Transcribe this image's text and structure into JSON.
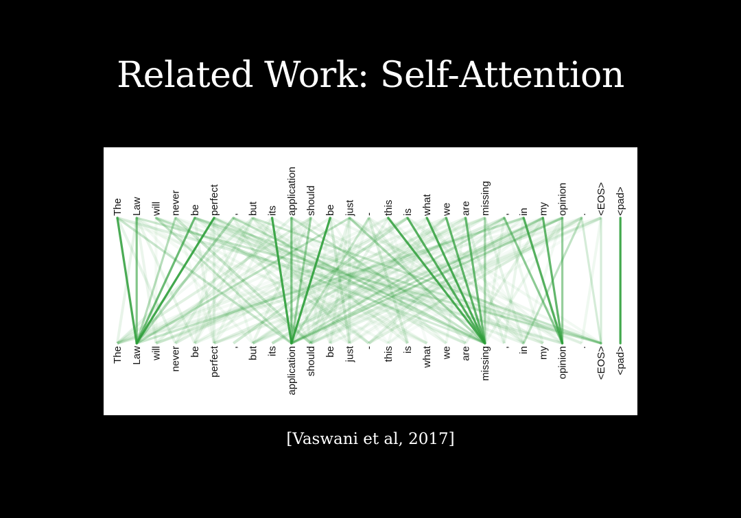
{
  "slide": {
    "title": "Related Work: Self-Attention",
    "citation": "[Vaswani et al, 2017]"
  },
  "diagram": {
    "type": "attention-visualization",
    "line_color": "#2e9e3a",
    "tokens": [
      "The",
      "Law",
      "will",
      "never",
      "be",
      "perfect",
      ",",
      "but",
      "its",
      "application",
      "should",
      "be",
      "just",
      "-",
      "this",
      "is",
      "what",
      "we",
      "are",
      "missing",
      ",",
      "in",
      "my",
      "opinion",
      ".",
      "<EOS>",
      "<pad>"
    ],
    "strong_links": [
      {
        "from": 0,
        "to": 1,
        "weight": 0.85
      },
      {
        "from": 1,
        "to": 1,
        "weight": 0.6
      },
      {
        "from": 4,
        "to": 1,
        "weight": 0.7
      },
      {
        "from": 5,
        "to": 1,
        "weight": 0.9
      },
      {
        "from": 3,
        "to": 1,
        "weight": 0.35
      },
      {
        "from": 8,
        "to": 9,
        "weight": 0.9
      },
      {
        "from": 11,
        "to": 9,
        "weight": 0.9
      },
      {
        "from": 9,
        "to": 9,
        "weight": 0.55
      },
      {
        "from": 10,
        "to": 9,
        "weight": 0.45
      },
      {
        "from": 14,
        "to": 19,
        "weight": 0.85
      },
      {
        "from": 15,
        "to": 19,
        "weight": 0.8
      },
      {
        "from": 16,
        "to": 19,
        "weight": 0.85
      },
      {
        "from": 17,
        "to": 19,
        "weight": 0.75
      },
      {
        "from": 18,
        "to": 19,
        "weight": 0.7
      },
      {
        "from": 19,
        "to": 19,
        "weight": 0.35
      },
      {
        "from": 21,
        "to": 23,
        "weight": 0.8
      },
      {
        "from": 22,
        "to": 23,
        "weight": 0.75
      },
      {
        "from": 23,
        "to": 23,
        "weight": 0.5
      },
      {
        "from": 20,
        "to": 23,
        "weight": 0.55
      },
      {
        "from": 24,
        "to": 21,
        "weight": 0.3
      },
      {
        "from": 23,
        "to": 9,
        "weight": 0.35
      },
      {
        "from": 22,
        "to": 9,
        "weight": 0.3
      },
      {
        "from": 2,
        "to": 9,
        "weight": 0.25
      },
      {
        "from": 12,
        "to": 1,
        "weight": 0.3
      },
      {
        "from": 6,
        "to": 19,
        "weight": 0.3
      },
      {
        "from": 7,
        "to": 25,
        "weight": 0.25
      },
      {
        "from": 1,
        "to": 25,
        "weight": 0.25
      },
      {
        "from": 4,
        "to": 25,
        "weight": 0.2
      },
      {
        "from": 13,
        "to": 9,
        "weight": 0.25
      },
      {
        "from": 26,
        "to": 26,
        "weight": 0.9
      },
      {
        "from": 25,
        "to": 25,
        "weight": 0.2
      },
      {
        "from": 12,
        "to": 19,
        "weight": 0.3
      },
      {
        "from": 9,
        "to": 19,
        "weight": 0.25
      },
      {
        "from": 5,
        "to": 19,
        "weight": 0.25
      },
      {
        "from": 2,
        "to": 19,
        "weight": 0.2
      },
      {
        "from": 20,
        "to": 9,
        "weight": 0.25
      },
      {
        "from": 0,
        "to": 9,
        "weight": 0.2
      },
      {
        "from": 6,
        "to": 1,
        "weight": 0.2
      },
      {
        "from": 21,
        "to": 1,
        "weight": 0.2
      },
      {
        "from": 24,
        "to": 25,
        "weight": 0.2
      }
    ]
  }
}
